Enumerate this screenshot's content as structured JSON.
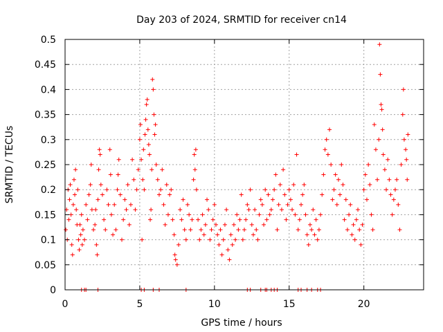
{
  "chart_data": {
    "type": "scatter",
    "title": "Day 203 of 2024, SRMTID for receiver cn14",
    "xlabel": "GPS time / hours",
    "ylabel": "SRMTID / TECUs",
    "xlim": [
      0,
      24
    ],
    "ylim": [
      0,
      0.5
    ],
    "grid": true,
    "marker": "+",
    "color": "#ff0000",
    "x_ticks": [
      {
        "value": 0,
        "label": "0"
      },
      {
        "value": 5,
        "label": "5"
      },
      {
        "value": 10,
        "label": "10"
      },
      {
        "value": 15,
        "label": "15"
      },
      {
        "value": 20,
        "label": "20"
      }
    ],
    "y_ticks": [
      {
        "value": 0,
        "label": "0"
      },
      {
        "value": 0.05,
        "label": "0.05"
      },
      {
        "value": 0.1,
        "label": "0.1"
      },
      {
        "value": 0.15,
        "label": "0.15"
      },
      {
        "value": 0.2,
        "label": "0.2"
      },
      {
        "value": 0.25,
        "label": "0.25"
      },
      {
        "value": 0.3,
        "label": "0.3"
      },
      {
        "value": 0.35,
        "label": "0.35"
      },
      {
        "value": 0.4,
        "label": "0.4"
      },
      {
        "value": 0.45,
        "label": "0.45"
      },
      {
        "value": 0.5,
        "label": "0.5"
      }
    ],
    "series": [
      {
        "name": "SRMTID",
        "points": [
          [
            0.05,
            0.12
          ],
          [
            0.1,
            0.16
          ],
          [
            0.15,
            0.1
          ],
          [
            0.2,
            0.2
          ],
          [
            0.25,
            0.14
          ],
          [
            0.3,
            0.18
          ],
          [
            0.35,
            0.21
          ],
          [
            0.4,
            0.15
          ],
          [
            0.45,
            0.09
          ],
          [
            0.5,
            0.07
          ],
          [
            0.55,
            0.17
          ],
          [
            0.6,
            0.22
          ],
          [
            0.65,
            0.19
          ],
          [
            0.7,
            0.24
          ],
          [
            0.75,
            0.16
          ],
          [
            0.8,
            0.13
          ],
          [
            0.85,
            0.2
          ],
          [
            0.9,
            0.1
          ],
          [
            0.95,
            0.08
          ],
          [
            1.0,
            0.13
          ],
          [
            1.05,
            0.11
          ],
          [
            1.1,
            0.15
          ],
          [
            1.15,
            0.09
          ],
          [
            1.2,
            0.12
          ],
          [
            1.3,
            0.1
          ],
          [
            1.4,
            0.17
          ],
          [
            1.5,
            0.14
          ],
          [
            1.6,
            0.19
          ],
          [
            1.7,
            0.21
          ],
          [
            1.75,
            0.25
          ],
          [
            1.8,
            0.16
          ],
          [
            1.9,
            0.12
          ],
          [
            2.0,
            0.13
          ],
          [
            2.05,
            0.16
          ],
          [
            2.1,
            0.09
          ],
          [
            2.15,
            0.07
          ],
          [
            2.2,
            0.18
          ],
          [
            2.25,
            0.24
          ],
          [
            2.3,
            0.28
          ],
          [
            2.35,
            0.27
          ],
          [
            2.4,
            0.21
          ],
          [
            2.5,
            0.19
          ],
          [
            2.6,
            0.14
          ],
          [
            2.7,
            0.12
          ],
          [
            2.8,
            0.2
          ],
          [
            2.9,
            0.17
          ],
          [
            3.0,
            0.28
          ],
          [
            3.05,
            0.23
          ],
          [
            3.1,
            0.15
          ],
          [
            3.2,
            0.11
          ],
          [
            3.3,
            0.17
          ],
          [
            3.4,
            0.12
          ],
          [
            3.5,
            0.2
          ],
          [
            3.55,
            0.23
          ],
          [
            3.6,
            0.26
          ],
          [
            3.7,
            0.19
          ],
          [
            3.8,
            0.1
          ],
          [
            3.9,
            0.14
          ],
          [
            4.0,
            0.18
          ],
          [
            4.1,
            0.16
          ],
          [
            4.2,
            0.21
          ],
          [
            4.3,
            0.13
          ],
          [
            4.4,
            0.17
          ],
          [
            4.5,
            0.26
          ],
          [
            4.6,
            0.22
          ],
          [
            4.7,
            0.16
          ],
          [
            4.8,
            0.2
          ],
          [
            4.9,
            0.24
          ],
          [
            5.0,
            0.3
          ],
          [
            5.05,
            0.33
          ],
          [
            5.1,
            0.26
          ],
          [
            5.15,
            0.1
          ],
          [
            5.2,
            0.22
          ],
          [
            5.25,
            0.28
          ],
          [
            5.3,
            0.2
          ],
          [
            5.35,
            0.31
          ],
          [
            5.4,
            0.34
          ],
          [
            5.45,
            0.37
          ],
          [
            5.5,
            0.38
          ],
          [
            5.55,
            0.32
          ],
          [
            5.6,
            0.29
          ],
          [
            5.65,
            0.27
          ],
          [
            5.7,
            0.14
          ],
          [
            5.75,
            0.16
          ],
          [
            5.8,
            0.24
          ],
          [
            5.85,
            0.42
          ],
          [
            5.9,
            0.4
          ],
          [
            5.95,
            0.35
          ],
          [
            6.0,
            0.31
          ],
          [
            6.05,
            0.33
          ],
          [
            6.1,
            0.25
          ],
          [
            6.2,
            0.22
          ],
          [
            6.3,
            0.19
          ],
          [
            6.4,
            0.2
          ],
          [
            6.5,
            0.24
          ],
          [
            6.6,
            0.17
          ],
          [
            6.7,
            0.13
          ],
          [
            6.8,
            0.21
          ],
          [
            6.9,
            0.15
          ],
          [
            7.0,
            0.19
          ],
          [
            7.1,
            0.2
          ],
          [
            7.2,
            0.14
          ],
          [
            7.3,
            0.11
          ],
          [
            7.35,
            0.07
          ],
          [
            7.4,
            0.06
          ],
          [
            7.5,
            0.05
          ],
          [
            7.6,
            0.09
          ],
          [
            7.7,
            0.16
          ],
          [
            7.8,
            0.14
          ],
          [
            7.9,
            0.18
          ],
          [
            8.0,
            0.12
          ],
          [
            8.1,
            0.1
          ],
          [
            8.2,
            0.17
          ],
          [
            8.3,
            0.15
          ],
          [
            8.4,
            0.12
          ],
          [
            8.5,
            0.14
          ],
          [
            8.6,
            0.22
          ],
          [
            8.65,
            0.27
          ],
          [
            8.7,
            0.24
          ],
          [
            8.75,
            0.28
          ],
          [
            8.8,
            0.2
          ],
          [
            8.9,
            0.14
          ],
          [
            9.0,
            0.1
          ],
          [
            9.1,
            0.12
          ],
          [
            9.2,
            0.15
          ],
          [
            9.3,
            0.11
          ],
          [
            9.4,
            0.13
          ],
          [
            9.5,
            0.18
          ],
          [
            9.6,
            0.16
          ],
          [
            9.7,
            0.1
          ],
          [
            9.8,
            0.12
          ],
          [
            9.9,
            0.14
          ],
          [
            10.0,
            0.17
          ],
          [
            10.1,
            0.13
          ],
          [
            10.2,
            0.11
          ],
          [
            10.3,
            0.09
          ],
          [
            10.4,
            0.12
          ],
          [
            10.5,
            0.07
          ],
          [
            10.6,
            0.1
          ],
          [
            10.7,
            0.13
          ],
          [
            10.8,
            0.16
          ],
          [
            10.9,
            0.08
          ],
          [
            11.0,
            0.06
          ],
          [
            11.1,
            0.11
          ],
          [
            11.2,
            0.09
          ],
          [
            11.3,
            0.13
          ],
          [
            11.4,
            0.1
          ],
          [
            11.5,
            0.15
          ],
          [
            11.6,
            0.12
          ],
          [
            11.7,
            0.14
          ],
          [
            11.8,
            0.19
          ],
          [
            11.9,
            0.1
          ],
          [
            12.0,
            0.12
          ],
          [
            12.1,
            0.14
          ],
          [
            12.2,
            0.17
          ],
          [
            12.3,
            0.16
          ],
          [
            12.4,
            0.2
          ],
          [
            12.5,
            0.13
          ],
          [
            12.6,
            0.11
          ],
          [
            12.7,
            0.16
          ],
          [
            12.8,
            0.12
          ],
          [
            12.9,
            0.1
          ],
          [
            13.0,
            0.15
          ],
          [
            13.1,
            0.18
          ],
          [
            13.2,
            0.17
          ],
          [
            13.3,
            0.13
          ],
          [
            13.4,
            0.2
          ],
          [
            13.5,
            0.14
          ],
          [
            13.6,
            0.19
          ],
          [
            13.7,
            0.15
          ],
          [
            13.8,
            0.16
          ],
          [
            13.9,
            0.18
          ],
          [
            14.0,
            0.2
          ],
          [
            14.1,
            0.23
          ],
          [
            14.2,
            0.12
          ],
          [
            14.3,
            0.17
          ],
          [
            14.4,
            0.21
          ],
          [
            14.5,
            0.16
          ],
          [
            14.6,
            0.24
          ],
          [
            14.7,
            0.19
          ],
          [
            14.8,
            0.14
          ],
          [
            14.9,
            0.17
          ],
          [
            15.0,
            0.2
          ],
          [
            15.1,
            0.18
          ],
          [
            15.2,
            0.16
          ],
          [
            15.3,
            0.21
          ],
          [
            15.4,
            0.15
          ],
          [
            15.5,
            0.27
          ],
          [
            15.6,
            0.12
          ],
          [
            15.7,
            0.14
          ],
          [
            15.8,
            0.17
          ],
          [
            15.9,
            0.19
          ],
          [
            16.0,
            0.21
          ],
          [
            16.1,
            0.15
          ],
          [
            16.2,
            0.11
          ],
          [
            16.3,
            0.09
          ],
          [
            16.4,
            0.13
          ],
          [
            16.5,
            0.12
          ],
          [
            16.6,
            0.16
          ],
          [
            16.7,
            0.11
          ],
          [
            16.8,
            0.14
          ],
          [
            16.9,
            0.1
          ],
          [
            17.0,
            0.12
          ],
          [
            17.1,
            0.15
          ],
          [
            17.2,
            0.19
          ],
          [
            17.3,
            0.23
          ],
          [
            17.4,
            0.28
          ],
          [
            17.5,
            0.3
          ],
          [
            17.6,
            0.27
          ],
          [
            17.7,
            0.32
          ],
          [
            17.8,
            0.25
          ],
          [
            17.9,
            0.18
          ],
          [
            18.0,
            0.2
          ],
          [
            18.1,
            0.23
          ],
          [
            18.2,
            0.17
          ],
          [
            18.3,
            0.22
          ],
          [
            18.4,
            0.19
          ],
          [
            18.5,
            0.25
          ],
          [
            18.6,
            0.21
          ],
          [
            18.7,
            0.14
          ],
          [
            18.8,
            0.18
          ],
          [
            18.9,
            0.12
          ],
          [
            19.0,
            0.15
          ],
          [
            19.1,
            0.17
          ],
          [
            19.2,
            0.11
          ],
          [
            19.3,
            0.13
          ],
          [
            19.4,
            0.1
          ],
          [
            19.5,
            0.14
          ],
          [
            19.6,
            0.16
          ],
          [
            19.7,
            0.12
          ],
          [
            19.8,
            0.09
          ],
          [
            19.9,
            0.13
          ],
          [
            20.0,
            0.2
          ],
          [
            20.1,
            0.23
          ],
          [
            20.2,
            0.18
          ],
          [
            20.3,
            0.25
          ],
          [
            20.4,
            0.21
          ],
          [
            20.5,
            0.15
          ],
          [
            20.6,
            0.12
          ],
          [
            20.7,
            0.33
          ],
          [
            20.8,
            0.28
          ],
          [
            20.9,
            0.22
          ],
          [
            21.0,
            0.3
          ],
          [
            21.05,
            0.49
          ],
          [
            21.1,
            0.43
          ],
          [
            21.15,
            0.37
          ],
          [
            21.2,
            0.36
          ],
          [
            21.25,
            0.32
          ],
          [
            21.3,
            0.27
          ],
          [
            21.4,
            0.24
          ],
          [
            21.5,
            0.2
          ],
          [
            21.6,
            0.26
          ],
          [
            21.7,
            0.22
          ],
          [
            21.8,
            0.19
          ],
          [
            21.9,
            0.15
          ],
          [
            22.0,
            0.18
          ],
          [
            22.1,
            0.2
          ],
          [
            22.2,
            0.22
          ],
          [
            22.3,
            0.17
          ],
          [
            22.4,
            0.12
          ],
          [
            22.5,
            0.25
          ],
          [
            22.6,
            0.35
          ],
          [
            22.65,
            0.4
          ],
          [
            22.7,
            0.3
          ],
          [
            22.8,
            0.28
          ],
          [
            22.85,
            0.26
          ],
          [
            22.9,
            0.22
          ],
          [
            22.95,
            0.31
          ]
        ],
        "zeros": [
          1.1,
          1.3,
          1.4,
          2.2,
          5.1,
          5.3,
          5.9,
          6.3,
          8.1,
          12.2,
          12.4,
          13.1,
          13.4,
          13.5,
          13.8,
          14.0,
          14.2,
          15.6,
          15.8,
          16.2,
          16.5,
          16.9,
          17.1
        ]
      }
    ]
  }
}
